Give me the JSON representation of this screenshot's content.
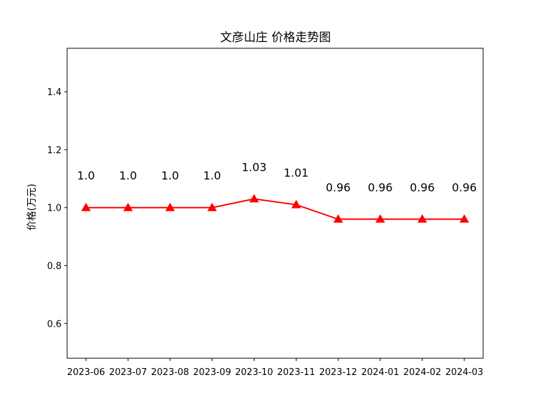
{
  "chart_data": {
    "type": "line",
    "title": "文彦山庄 价格走势图",
    "xlabel": "",
    "ylabel": "价格(万元)",
    "categories": [
      "2023-06",
      "2023-07",
      "2023-08",
      "2023-09",
      "2023-10",
      "2023-11",
      "2023-12",
      "2024-01",
      "2024-02",
      "2024-03"
    ],
    "series": [
      {
        "values": [
          1.0,
          1.0,
          1.0,
          1.0,
          1.03,
          1.01,
          0.96,
          0.96,
          0.96,
          0.96
        ],
        "color": "#ff0000",
        "marker": "triangle"
      }
    ],
    "data_labels": [
      "1.0",
      "1.0",
      "1.0",
      "1.0",
      "1.03",
      "1.01",
      "0.96",
      "0.96",
      "0.96",
      "0.96"
    ],
    "yticks": [
      0.6,
      0.8,
      1.0,
      1.2,
      1.4
    ],
    "ytick_labels": [
      "0.6",
      "0.8",
      "1.0",
      "1.2",
      "1.4"
    ],
    "ylim": [
      0.48,
      1.55
    ],
    "grid": false,
    "legend": false
  }
}
